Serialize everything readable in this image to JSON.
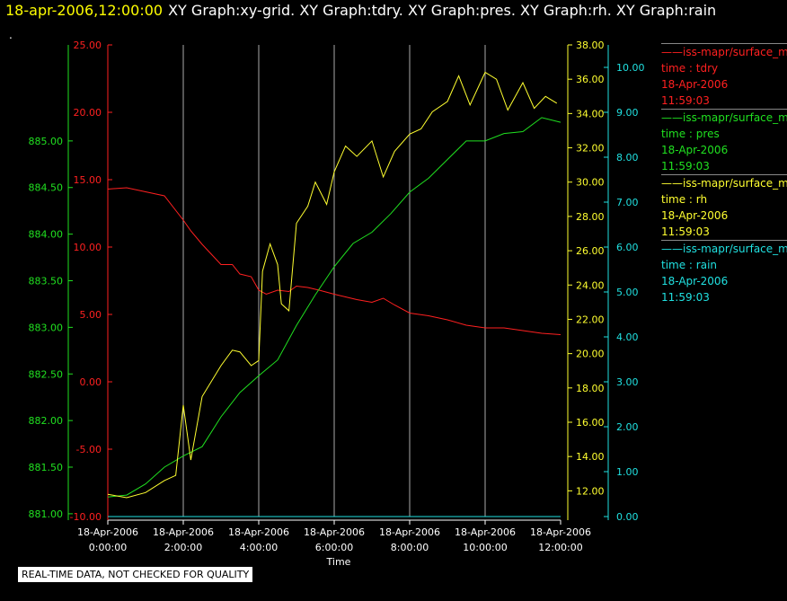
{
  "title": {
    "timestamp": "18-apr-2006,12:00:00",
    "graphs": "XY Graph:xy-grid.  XY Graph:tdry.  XY Graph:pres.  XY Graph:rh.  XY Graph:rain"
  },
  "dot": ".",
  "quality_note": "REAL-TIME DATA, NOT CHECKED FOR QUALITY",
  "legend": [
    {
      "name": "iss-mapr/surface_m",
      "var": "time : tdry",
      "date": "18-Apr-2006",
      "time": "11:59:03",
      "color": "#ff2020"
    },
    {
      "name": "iss-mapr/surface_m",
      "var": "time : pres",
      "date": "18-Apr-2006",
      "time": "11:59:03",
      "color": "#20e020"
    },
    {
      "name": "iss-mapr/surface_m",
      "var": "time : rh",
      "date": "18-Apr-2006",
      "time": "11:59:03",
      "color": "#ffff30"
    },
    {
      "name": "iss-mapr/surface_m",
      "var": "time : rain",
      "date": "18-Apr-2006",
      "time": "11:59:03",
      "color": "#20e0e0"
    }
  ],
  "chart_data": {
    "type": "line",
    "xlabel": "Time",
    "x_ticks": [
      {
        "hours": 0,
        "date": "18-Apr-2006",
        "time": "0:00:00"
      },
      {
        "hours": 2,
        "date": "18-Apr-2006",
        "time": "2:00:00"
      },
      {
        "hours": 4,
        "date": "18-Apr-2006",
        "time": "4:00:00"
      },
      {
        "hours": 6,
        "date": "18-Apr-2006",
        "time": "6:00:00"
      },
      {
        "hours": 8,
        "date": "18-Apr-2006",
        "time": "8:00:00"
      },
      {
        "hours": 10,
        "date": "18-Apr-2006",
        "time": "10:00:00"
      },
      {
        "hours": 12,
        "date": "18-Apr-2006",
        "time": "12:00:00"
      }
    ],
    "x_range_hours": [
      0,
      12
    ],
    "grid": "vertical",
    "axes": {
      "pres": {
        "range": [
          880.97,
          886.03
        ],
        "ticks": [
          "881.00",
          "881.50",
          "882.00",
          "882.50",
          "883.00",
          "883.50",
          "884.00",
          "884.50",
          "885.00"
        ],
        "color": "#20e020"
      },
      "tdry": {
        "range": [
          -10,
          25
        ],
        "ticks": [
          "-10.00",
          "-5.00",
          "0.00",
          "5.00",
          "10.00",
          "15.00",
          "20.00",
          "25.00"
        ],
        "color": "#ff2020"
      },
      "rh": {
        "range": [
          10.5,
          38
        ],
        "ticks": [
          "12.00",
          "14.00",
          "16.00",
          "18.00",
          "20.00",
          "22.00",
          "24.00",
          "26.00",
          "28.00",
          "30.00",
          "32.00",
          "34.00",
          "36.00",
          "38.00"
        ],
        "color": "#ffff30"
      },
      "rain": {
        "range": [
          0,
          10.5
        ],
        "ticks": [
          "0.00",
          "1.00",
          "2.00",
          "3.00",
          "4.00",
          "5.00",
          "6.00",
          "7.00",
          "8.00",
          "9.00",
          "10.00"
        ],
        "color": "#20e0e0"
      }
    },
    "series": [
      {
        "name": "tdry",
        "axis": "tdry",
        "color": "#ff2020",
        "x": [
          0,
          0.5,
          1,
          1.5,
          2,
          2.2,
          2.5,
          3,
          3.3,
          3.5,
          3.8,
          4,
          4.2,
          4.5,
          4.8,
          5,
          5.3,
          5.6,
          6,
          6.3,
          6.6,
          7,
          7.3,
          7.6,
          8,
          8.5,
          9,
          9.5,
          10,
          10.5,
          11,
          11.5,
          12
        ],
        "y": [
          14.3,
          14.4,
          14.1,
          13.8,
          12,
          11.2,
          10.2,
          8.7,
          8.7,
          8,
          7.8,
          6.8,
          6.5,
          6.8,
          6.7,
          7.1,
          7,
          6.8,
          6.5,
          6.3,
          6.1,
          5.9,
          6.2,
          5.7,
          5.1,
          4.9,
          4.6,
          4.2,
          4.0,
          4.0,
          3.8,
          3.6,
          3.5
        ]
      },
      {
        "name": "pres",
        "axis": "pres",
        "color": "#20e020",
        "x": [
          0,
          0.5,
          1,
          1.5,
          2,
          2.5,
          3,
          3.5,
          4,
          4.5,
          5,
          5.5,
          6,
          6.5,
          7,
          7.5,
          8,
          8.5,
          9,
          9.5,
          10,
          10.5,
          11,
          11.5,
          12
        ],
        "y": [
          881.18,
          881.2,
          881.32,
          881.5,
          881.62,
          881.72,
          882.04,
          882.3,
          882.48,
          882.65,
          883.02,
          883.35,
          883.65,
          883.9,
          884.02,
          884.22,
          884.45,
          884.6,
          884.8,
          885.0,
          885.0,
          885.08,
          885.1,
          885.25,
          885.2
        ]
      },
      {
        "name": "rh",
        "axis": "rh",
        "color": "#ffff30",
        "x": [
          0,
          0.5,
          1,
          1.5,
          1.8,
          2,
          2.2,
          2.5,
          3,
          3.3,
          3.5,
          3.8,
          4,
          4.1,
          4.3,
          4.5,
          4.6,
          4.8,
          5,
          5.3,
          5.5,
          5.8,
          6,
          6.3,
          6.6,
          7,
          7.3,
          7.6,
          8,
          8.3,
          8.6,
          9,
          9.3,
          9.6,
          10,
          10.3,
          10.6,
          11,
          11.3,
          11.6,
          11.9
        ],
        "y": [
          11.8,
          11.6,
          11.9,
          12.6,
          12.9,
          17,
          13.8,
          17.5,
          19.3,
          20.2,
          20.1,
          19.3,
          19.6,
          24.8,
          26.4,
          25.2,
          22.9,
          22.5,
          27.6,
          28.6,
          30,
          28.7,
          30.6,
          32.1,
          31.5,
          32.4,
          30.3,
          31.8,
          32.8,
          33.1,
          34.1,
          34.7,
          36.2,
          34.5,
          36.4,
          36.0,
          34.2,
          35.8,
          34.3,
          35.0,
          34.6
        ]
      },
      {
        "name": "rain",
        "axis": "rain",
        "color": "#20e0e0",
        "x": [
          0,
          12
        ],
        "y": [
          0.0,
          0.0
        ]
      }
    ]
  }
}
